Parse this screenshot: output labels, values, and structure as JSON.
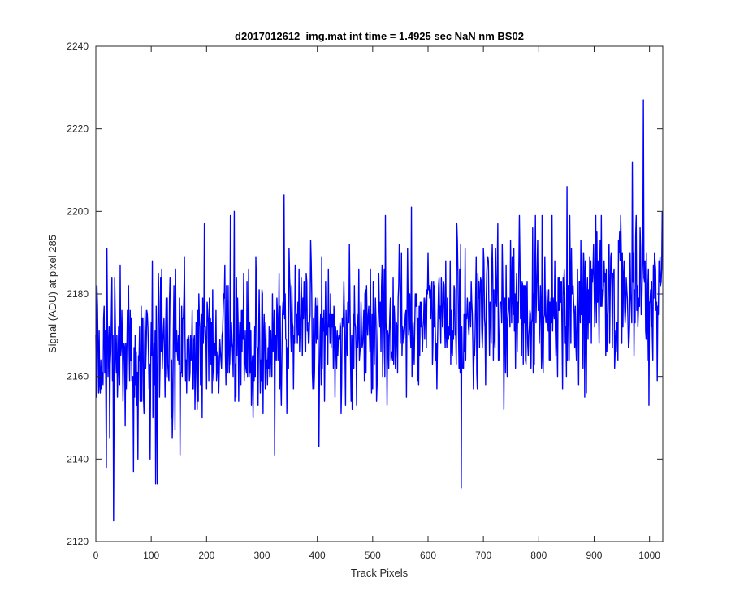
{
  "chart_data": {
    "type": "line",
    "title": "d2017012612_img.mat int time = 1.4925 sec  NaN nm BS02",
    "xlabel": "Track Pixels",
    "ylabel": "Signal (ADU) at pixel 285",
    "xlim": [
      0,
      1024
    ],
    "ylim": [
      2120,
      2240
    ],
    "xticks": [
      0,
      100,
      200,
      300,
      400,
      500,
      600,
      700,
      800,
      900,
      1000
    ],
    "yticks": [
      2120,
      2140,
      2160,
      2180,
      2200,
      2220,
      2240
    ],
    "grid": false,
    "legend": "none",
    "series": [
      {
        "color": "#0000ff",
        "trend": {
          "start": 2163,
          "end": 2181
        },
        "noise_sd": 9,
        "seed": 285,
        "n_points": 1024,
        "notable_points": [
          {
            "x": 0,
            "y": 2170
          },
          {
            "x": 3,
            "y": 2177
          },
          {
            "x": 32,
            "y": 2125
          },
          {
            "x": 44,
            "y": 2187
          },
          {
            "x": 68,
            "y": 2137
          },
          {
            "x": 108,
            "y": 2134
          },
          {
            "x": 111,
            "y": 2134
          },
          {
            "x": 243,
            "y": 2199
          },
          {
            "x": 250,
            "y": 2200
          },
          {
            "x": 323,
            "y": 2141
          },
          {
            "x": 340,
            "y": 2204
          },
          {
            "x": 570,
            "y": 2201
          },
          {
            "x": 660,
            "y": 2133
          },
          {
            "x": 851,
            "y": 2206
          },
          {
            "x": 969,
            "y": 2212
          },
          {
            "x": 989,
            "y": 2227
          },
          {
            "x": 999,
            "y": 2153
          },
          {
            "x": 1014,
            "y": 2159
          },
          {
            "x": 1023,
            "y": 2200
          }
        ]
      }
    ]
  }
}
